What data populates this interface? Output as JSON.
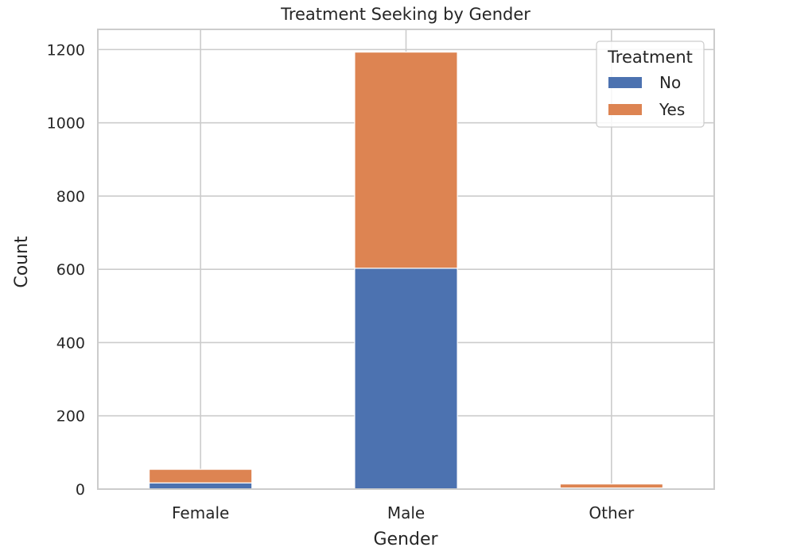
{
  "chart_data": {
    "type": "bar",
    "stacked": true,
    "title": "Treatment Seeking by Gender",
    "xlabel": "Gender",
    "ylabel": "Count",
    "categories": [
      "Female",
      "Male",
      "Other"
    ],
    "series": [
      {
        "name": "No",
        "color": "#4c72b0",
        "values": [
          17,
          603,
          3
        ]
      },
      {
        "name": "Yes",
        "color": "#dd8452",
        "values": [
          37,
          590,
          11
        ]
      }
    ],
    "ylim": [
      0,
      1255
    ],
    "yticks": [
      0,
      200,
      400,
      600,
      800,
      1000,
      1200
    ],
    "grid": true,
    "legend": {
      "title": "Treatment",
      "placement": "top-right"
    }
  }
}
